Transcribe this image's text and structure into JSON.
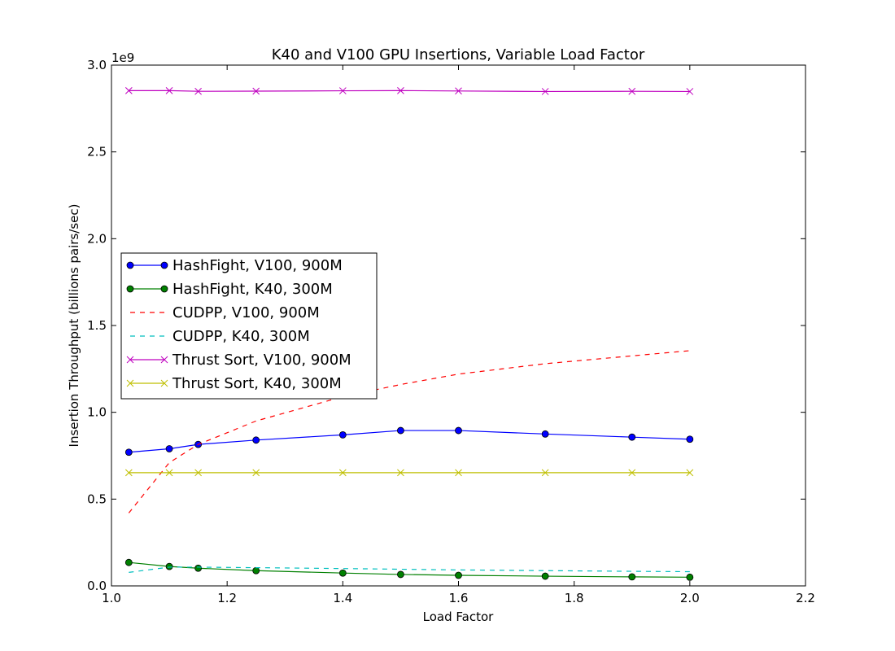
{
  "chart_data": {
    "type": "line",
    "title": "K40 and V100 GPU Insertions, Variable Load Factor",
    "xlabel": "Load Factor",
    "ylabel": "Insertion Throughput (billions pairs/sec)",
    "y_offset_label": "1e9",
    "xlim": [
      1.0,
      2.2
    ],
    "ylim": [
      0.0,
      3.0
    ],
    "xticks": [
      "1.0",
      "1.2",
      "1.4",
      "1.6",
      "1.8",
      "2.0",
      "2.2"
    ],
    "yticks": [
      "0.0",
      "0.5",
      "1.0",
      "1.5",
      "2.0",
      "2.5",
      "3.0"
    ],
    "grid": false,
    "legend_position": "center-left",
    "x": [
      1.03,
      1.1,
      1.15,
      1.25,
      1.4,
      1.5,
      1.6,
      1.75,
      1.9,
      2.0
    ],
    "series": [
      {
        "name": "HashFight, V100, 900M",
        "color": "#0000ff",
        "style": "solid",
        "marker": "circle",
        "values": [
          0.77,
          0.79,
          0.815,
          0.84,
          0.87,
          0.895,
          0.895,
          0.875,
          0.857,
          0.845
        ]
      },
      {
        "name": "HashFight, K40, 300M",
        "color": "#008000",
        "style": "solid",
        "marker": "circle",
        "values": [
          0.135,
          0.112,
          0.102,
          0.088,
          0.074,
          0.066,
          0.061,
          0.056,
          0.052,
          0.05
        ]
      },
      {
        "name": "CUDPP, V100, 900M",
        "color": "#ff0000",
        "style": "dashed",
        "marker": "none",
        "values": [
          0.42,
          0.71,
          0.815,
          0.95,
          1.09,
          1.16,
          1.22,
          1.28,
          1.325,
          1.355
        ]
      },
      {
        "name": "CUDPP, K40, 300M",
        "color": "#00bfbf",
        "style": "dashed",
        "marker": "none",
        "values": [
          0.078,
          0.108,
          0.108,
          0.105,
          0.1,
          0.096,
          0.092,
          0.088,
          0.084,
          0.082
        ]
      },
      {
        "name": "Thrust Sort, V100, 900M",
        "color": "#bf00bf",
        "style": "solid",
        "marker": "x",
        "values": [
          2.853,
          2.853,
          2.849,
          2.85,
          2.852,
          2.853,
          2.851,
          2.848,
          2.849,
          2.848
        ]
      },
      {
        "name": "Thrust Sort, K40, 300M",
        "color": "#bfbf00",
        "style": "solid",
        "marker": "x",
        "values": [
          0.652,
          0.652,
          0.652,
          0.652,
          0.652,
          0.652,
          0.652,
          0.652,
          0.652,
          0.652
        ]
      }
    ]
  }
}
